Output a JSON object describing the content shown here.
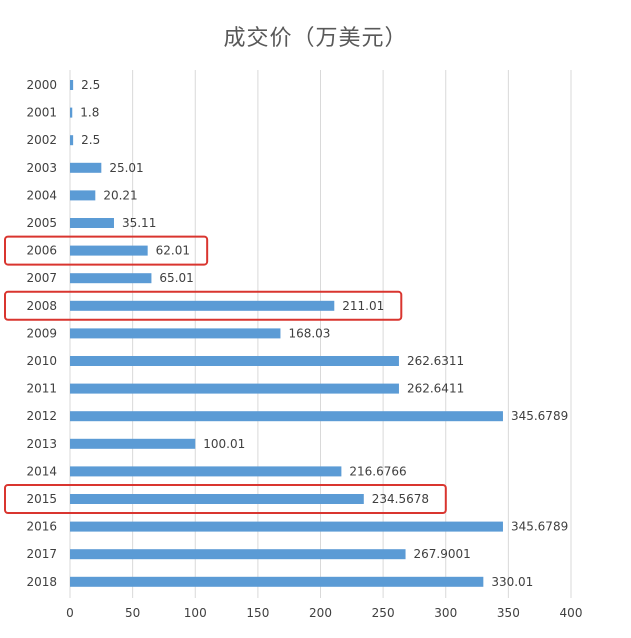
{
  "chart_data": {
    "type": "bar",
    "orientation": "horizontal",
    "title": "成交价（万美元）",
    "xlabel": "",
    "ylabel": "",
    "categories": [
      "2000",
      "2001",
      "2002",
      "2003",
      "2004",
      "2005",
      "2006",
      "2007",
      "2008",
      "2009",
      "2010",
      "2011",
      "2012",
      "2013",
      "2014",
      "2015",
      "2016",
      "2017",
      "2018"
    ],
    "values": [
      2.5,
      1.8,
      2.5,
      25.01,
      20.21,
      35.11,
      62.01,
      65.01,
      211.01,
      168.03,
      262.6311,
      262.6411,
      345.6789,
      100.01,
      216.6766,
      234.5678,
      345.6789,
      267.9001,
      330.01
    ],
    "data_labels": [
      "2.5",
      "1.8",
      "2.5",
      "25.01",
      "20.21",
      "35.11",
      "62.01",
      "65.01",
      "211.01",
      "168.03",
      "262.6311",
      "262.6411",
      "345.6789",
      "100.01",
      "216.6766",
      "234.5678",
      "345.6789",
      "267.9001",
      "330.01"
    ],
    "x_ticks": [
      "0",
      "50",
      "100",
      "150",
      "200",
      "250",
      "300",
      "350",
      "400"
    ],
    "xlim": [
      0,
      400
    ],
    "grid": true,
    "bar_color": "#5B9BD5",
    "highlighted_categories": [
      "2006",
      "2008",
      "2015"
    ],
    "highlight_color": "#D9352F"
  }
}
